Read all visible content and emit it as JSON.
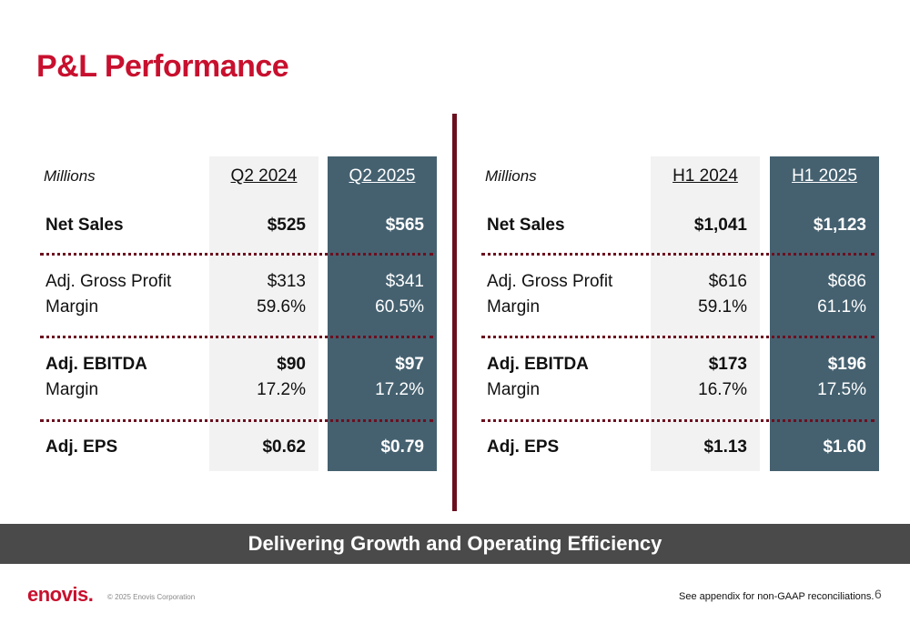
{
  "title": "P&L Performance",
  "banner": "Delivering Growth and Operating Efficiency",
  "footer": {
    "logo": "enovis",
    "logo_dot": ".",
    "copyright": "© 2025 Enovis Corporation",
    "appendix_note": "See appendix for non-GAAP reconciliations.",
    "page_number": "6"
  },
  "colors": {
    "title_red": "#c8102e",
    "highlight_column": "#456170",
    "light_column": "#f2f2f2",
    "divider": "#6b0f1f",
    "banner": "#4a4a4a"
  },
  "left_table": {
    "units": "Millions",
    "col1": "Q2 2024",
    "col2": "Q2 2025",
    "rows": [
      {
        "label": "Net Sales",
        "sub": "",
        "v1": "$525",
        "v1b": "",
        "v2": "$565",
        "v2b": ""
      },
      {
        "label": "Adj. Gross Profit",
        "sub": "Margin",
        "v1": "$313",
        "v1b": "59.6%",
        "v2": "$341",
        "v2b": "60.5%"
      },
      {
        "label": "Adj. EBITDA",
        "sub": "Margin",
        "v1": "$90",
        "v1b": "17.2%",
        "v2": "$97",
        "v2b": "17.2%"
      },
      {
        "label": "Adj. EPS",
        "sub": "",
        "v1": "$0.62",
        "v1b": "",
        "v2": "$0.79",
        "v2b": ""
      }
    ]
  },
  "right_table": {
    "units": "Millions",
    "col1": "H1 2024",
    "col2": "H1 2025",
    "rows": [
      {
        "label": "Net Sales",
        "sub": "",
        "v1": "$1,041",
        "v1b": "",
        "v2": "$1,123",
        "v2b": ""
      },
      {
        "label": "Adj. Gross Profit",
        "sub": "Margin",
        "v1": "$616",
        "v1b": "59.1%",
        "v2": "$686",
        "v2b": "61.1%"
      },
      {
        "label": "Adj. EBITDA",
        "sub": "Margin",
        "v1": "$173",
        "v1b": "16.7%",
        "v2": "$196",
        "v2b": "17.5%"
      },
      {
        "label": "Adj. EPS",
        "sub": "",
        "v1": "$1.13",
        "v1b": "",
        "v2": "$1.60",
        "v2b": ""
      }
    ]
  }
}
